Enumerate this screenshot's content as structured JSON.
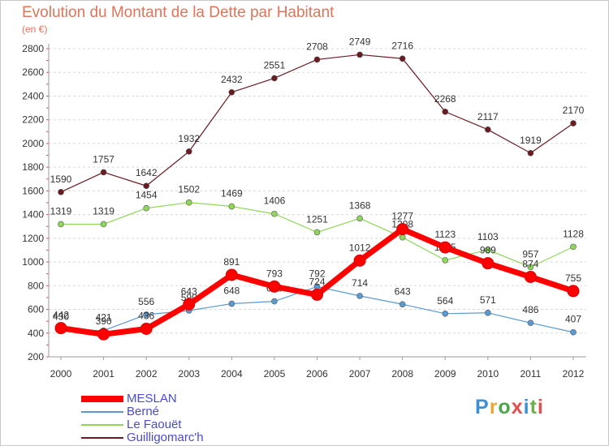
{
  "title": "Evolution du Montant de la Dette par Habitant",
  "unit": "(en €)",
  "logo": {
    "text": "Proxiti",
    "colors": [
      "#3d8fd6",
      "#e8a83c",
      "#4ca64a",
      "#e05050",
      "#3d8fd6",
      "#6ab04c",
      "#e05050"
    ]
  },
  "chart_data": {
    "type": "line",
    "x": [
      "2000",
      "2001",
      "2002",
      "2003",
      "2004",
      "2005",
      "2006",
      "2007",
      "2008",
      "2009",
      "2010",
      "2011",
      "2012"
    ],
    "ylim": [
      200,
      2800
    ],
    "yticks": [
      "200",
      "400",
      "600",
      "800",
      "1000",
      "1200",
      "1400",
      "1600",
      "1800",
      "2000",
      "2200",
      "2400",
      "2600",
      "2800"
    ],
    "grid": "horizontal dashed",
    "series": [
      {
        "name": "Guilligomarc'h",
        "color": "#6b1a22",
        "values": [
          1590,
          1757,
          1642,
          1932,
          2432,
          2551,
          2708,
          2749,
          2716,
          2268,
          2117,
          1919,
          2170
        ],
        "labels": [
          "1590",
          "1757",
          "1642",
          "1932",
          "2432",
          "2551",
          "2708",
          "2749",
          "2716",
          "2268",
          "2117",
          "1919",
          "2170"
        ]
      },
      {
        "name": "Le Faouët",
        "color": "#8fd65a",
        "values": [
          1319,
          1319,
          1454,
          1502,
          1469,
          1406,
          1251,
          1368,
          1208,
          1015,
          1103,
          957,
          1128
        ],
        "labels": [
          "1319",
          "1319",
          "1454",
          "1502",
          "1469",
          "1406",
          "1251",
          "1368",
          "1208",
          "1015",
          "1103",
          "957",
          "1128"
        ]
      },
      {
        "name": "Berné",
        "color": "#5a9ad0",
        "values": [
          430,
          421,
          556,
          590,
          648,
          668,
          792,
          714,
          643,
          564,
          571,
          486,
          407
        ],
        "labels": [
          "430",
          "421",
          "556",
          "590",
          "648",
          "668",
          "792",
          "714",
          "643",
          "564",
          "571",
          "486",
          "407"
        ]
      },
      {
        "name": "MESLAN",
        "color": "#ff0000",
        "values": [
          442,
          390,
          436,
          643,
          891,
          793,
          724,
          1012,
          1277,
          1123,
          989,
          874,
          755
        ],
        "labels": [
          "442",
          "390",
          "436",
          "643",
          "891",
          "793",
          "724",
          "1012",
          "1277",
          "1123",
          "989",
          "874",
          "755"
        ]
      }
    ]
  }
}
